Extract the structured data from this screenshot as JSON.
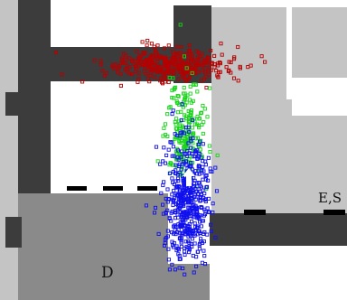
{
  "room_labels": {
    "room_d": "D",
    "room_es": "E,S"
  },
  "colors": {
    "background": "#ffffff",
    "wall": "#3c3c3c",
    "room_light": "#c4c4c4",
    "room_d_floor": "#8a8a8a",
    "door_marker": "#000000",
    "particles_red": "#b40000",
    "particles_green": "#19d419",
    "particles_blue": "#1010ee",
    "robot_arrow": "#ffffff"
  },
  "particle_sets": [
    {
      "name": "red",
      "color": "#b40000",
      "count": 360
    },
    {
      "name": "green",
      "color": "#19d419",
      "count": 230
    },
    {
      "name": "blue",
      "color": "#1010ee",
      "count": 520
    }
  ],
  "robot_heading": "up"
}
